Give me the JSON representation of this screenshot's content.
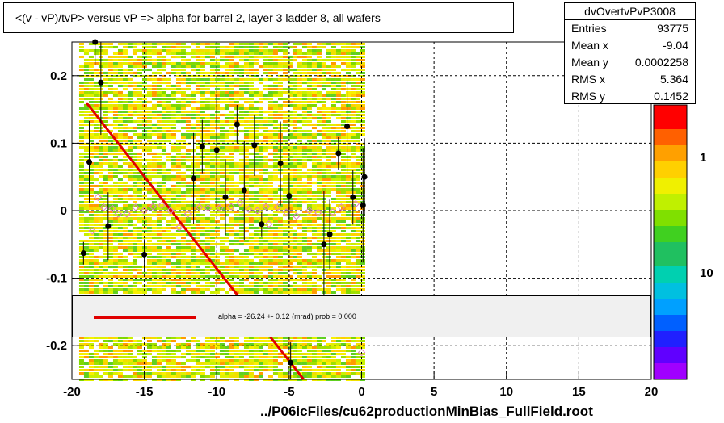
{
  "title": "<(v - vP)/tvP> versus   vP => alpha for barrel 2, layer 3 ladder 8, all wafers",
  "stats": {
    "name": "dvOvertvPvP3008",
    "rows": [
      {
        "key": "Entries",
        "value": "93775"
      },
      {
        "key": "Mean x",
        "value": "-9.04"
      },
      {
        "key": "Mean y",
        "value": "0.0002258"
      },
      {
        "key": "RMS x",
        "value": "5.364"
      },
      {
        "key": "RMS y",
        "value": "0.1452"
      }
    ]
  },
  "fit_label": "alpha =  -26.24 +-  0.12 (mrad) prob = 0.000",
  "footer": "../P06icFiles/cu62productionMinBias_FullField.root",
  "colors": {
    "fit_line": "#e00000",
    "profile_points": "#000000",
    "open_markers": "#e080c0",
    "grid": "#000000"
  },
  "chart_data": {
    "type": "scatter",
    "xlim": [
      -20,
      20
    ],
    "ylim": [
      -0.25,
      0.25
    ],
    "x_ticks": [
      "-20",
      "-15",
      "-10",
      "-5",
      "0",
      "5",
      "10",
      "15",
      "20"
    ],
    "y_ticks": [
      "-0.2",
      "-0.1",
      "0",
      "0.1",
      "0.2"
    ],
    "colorbar_ticks": [
      "1",
      "10"
    ],
    "grid": true,
    "heatmap_x_range": [
      -19.5,
      0
    ],
    "fit_line": {
      "x": [
        -19,
        -4
      ],
      "y": [
        0.16,
        -0.25
      ]
    },
    "profile_points": [
      {
        "x": -19.2,
        "y": -0.063
      },
      {
        "x": -18.8,
        "y": 0.072
      },
      {
        "x": -18.4,
        "y": 0.25
      },
      {
        "x": -18.0,
        "y": 0.19
      },
      {
        "x": -17.5,
        "y": -0.023
      },
      {
        "x": -15.0,
        "y": -0.065
      },
      {
        "x": -11.6,
        "y": 0.048
      },
      {
        "x": -11.0,
        "y": 0.095
      },
      {
        "x": -10.0,
        "y": 0.09
      },
      {
        "x": -9.4,
        "y": 0.02
      },
      {
        "x": -8.6,
        "y": 0.128
      },
      {
        "x": -8.1,
        "y": 0.03
      },
      {
        "x": -7.4,
        "y": 0.097
      },
      {
        "x": -6.9,
        "y": -0.02
      },
      {
        "x": -5.6,
        "y": 0.07
      },
      {
        "x": -5.0,
        "y": 0.022
      },
      {
        "x": -2.6,
        "y": -0.05
      },
      {
        "x": -2.2,
        "y": -0.035
      },
      {
        "x": -1.6,
        "y": 0.085
      },
      {
        "x": -1.0,
        "y": 0.125
      },
      {
        "x": -0.6,
        "y": 0.02
      },
      {
        "x": 0.1,
        "y": 0.008
      },
      {
        "x": 0.2,
        "y": 0.05
      },
      {
        "x": -4.9,
        "y": -0.225
      }
    ],
    "open_markers": [
      {
        "x": -18.6,
        "y": -0.03
      },
      {
        "x": -18.2,
        "y": 0.02
      },
      {
        "x": -17.8,
        "y": 0.005
      },
      {
        "x": -17.2,
        "y": 0.003
      },
      {
        "x": -16.8,
        "y": -0.005
      },
      {
        "x": -16.2,
        "y": -0.005
      },
      {
        "x": -15.6,
        "y": 0.005
      },
      {
        "x": -15.0,
        "y": 0.0
      },
      {
        "x": -14.4,
        "y": 0.006
      },
      {
        "x": -13.8,
        "y": 0.008
      },
      {
        "x": -13.2,
        "y": 0.0
      },
      {
        "x": -12.6,
        "y": -0.025
      },
      {
        "x": -12.0,
        "y": -0.005
      },
      {
        "x": -11.2,
        "y": 0.005
      },
      {
        "x": -10.6,
        "y": 0.004
      },
      {
        "x": -9.8,
        "y": 0.004
      },
      {
        "x": -9.0,
        "y": 0.006
      },
      {
        "x": -8.4,
        "y": 0.012
      },
      {
        "x": -7.8,
        "y": 0.002
      },
      {
        "x": -7.2,
        "y": 0.0
      },
      {
        "x": -6.6,
        "y": 0.006
      },
      {
        "x": -6.4,
        "y": -0.02
      },
      {
        "x": -5.8,
        "y": 0.005
      },
      {
        "x": -5.2,
        "y": -0.002
      },
      {
        "x": -4.5,
        "y": -0.008
      },
      {
        "x": -3.6,
        "y": 0.0
      },
      {
        "x": -3.0,
        "y": -0.003
      },
      {
        "x": -2.0,
        "y": -0.002
      },
      {
        "x": -1.4,
        "y": 0.005
      },
      {
        "x": -0.4,
        "y": 0.01
      },
      {
        "x": 0.0,
        "y": -0.21
      }
    ]
  }
}
